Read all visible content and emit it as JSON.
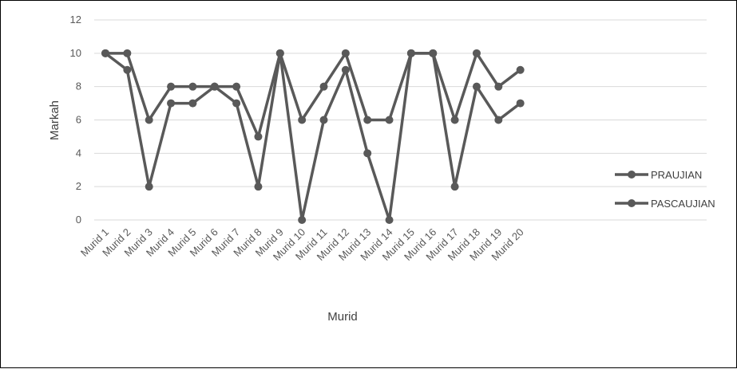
{
  "chart_data": {
    "type": "line",
    "title": "",
    "xlabel": "Murid",
    "ylabel": "Markah",
    "ylim": [
      0,
      12
    ],
    "yticks": [
      0,
      2,
      4,
      6,
      8,
      10,
      12
    ],
    "grid": true,
    "legend_position": "right",
    "categories": [
      "Murid 1",
      "Murid 2",
      "Murid 3",
      "Murid 4",
      "Murid 5",
      "Murid 6",
      "Murid 7",
      "Murid 8",
      "Murid 9",
      "Murid 10",
      "Murid 11",
      "Murid 12",
      "Murid 13",
      "Murid 14",
      "Murid 15",
      "Murid 16",
      "Murid 17",
      "Murid 18",
      "Murid 19",
      "Murid 20"
    ],
    "series": [
      {
        "name": "PRAUJIAN",
        "color": "#595959",
        "values": [
          10,
          9,
          2,
          7,
          7,
          8,
          7,
          2,
          10,
          0,
          6,
          9,
          4,
          0,
          10,
          10,
          2,
          8,
          6,
          7
        ]
      },
      {
        "name": "PASCAUJIAN",
        "color": "#595959",
        "values": [
          10,
          10,
          6,
          8,
          8,
          8,
          8,
          5,
          10,
          6,
          8,
          10,
          6,
          6,
          10,
          10,
          6,
          10,
          8,
          9
        ]
      }
    ]
  }
}
